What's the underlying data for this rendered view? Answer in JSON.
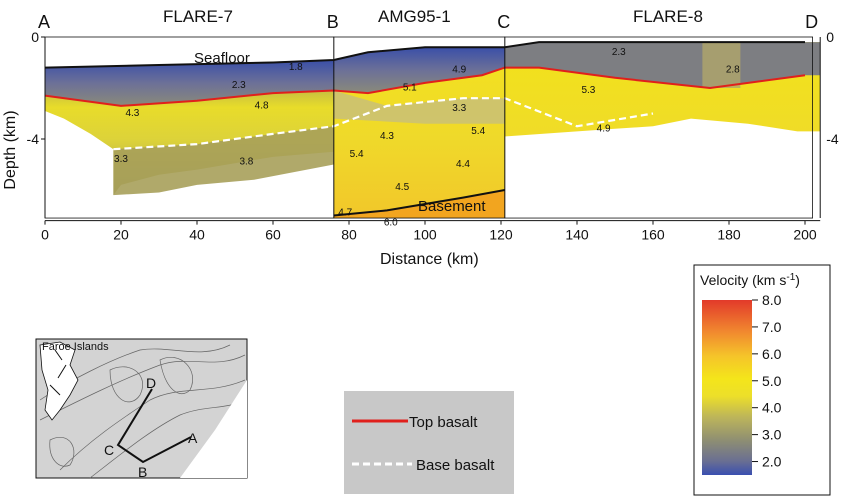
{
  "chart_data": {
    "type": "velocity-profile",
    "sections": [
      {
        "name": "FLARE-7",
        "start": "A",
        "end": "B",
        "x_range": [
          0,
          76
        ]
      },
      {
        "name": "AMG95-1",
        "start": "B",
        "end": "C",
        "x_range": [
          76,
          121
        ]
      },
      {
        "name": "FLARE-8",
        "start": "C",
        "end": "D",
        "x_range": [
          121,
          202
        ]
      }
    ],
    "endpoints": [
      "A",
      "B",
      "C",
      "D"
    ],
    "endpoint_x": [
      0,
      76,
      121,
      202
    ],
    "xlabel": "Distance (km)",
    "ylabel": "Depth (km)",
    "xlim": [
      0,
      202
    ],
    "ylim": [
      -7.5,
      0
    ],
    "x_ticks": [
      0,
      20,
      40,
      60,
      80,
      100,
      120,
      140,
      160,
      180,
      200
    ],
    "x_tick_labels": [
      "0",
      "20",
      "40",
      "60",
      "80",
      "100",
      "120",
      "140",
      "160",
      "180",
      "200"
    ],
    "y_ticks": [
      0,
      -4
    ],
    "y_tick_labels": [
      "0",
      "-4"
    ],
    "seafloor": [
      [
        0,
        -1.2
      ],
      [
        30,
        -1.1
      ],
      [
        60,
        -1.0
      ],
      [
        76,
        -0.9
      ],
      [
        85,
        -0.6
      ],
      [
        100,
        -0.4
      ],
      [
        121,
        -0.4
      ],
      [
        130,
        -0.2
      ],
      [
        160,
        -0.2
      ],
      [
        200,
        -0.2
      ]
    ],
    "top_basalt": [
      [
        0,
        -2.3
      ],
      [
        20,
        -2.7
      ],
      [
        40,
        -2.5
      ],
      [
        60,
        -2.2
      ],
      [
        76,
        -2.1
      ],
      [
        85,
        -2.2
      ],
      [
        100,
        -1.8
      ],
      [
        115,
        -1.5
      ],
      [
        121,
        -1.2
      ],
      [
        130,
        -1.2
      ],
      [
        150,
        -1.6
      ],
      [
        175,
        -2.0
      ],
      [
        200,
        -1.5
      ]
    ],
    "base_basalt": [
      [
        18,
        -4.4
      ],
      [
        40,
        -4.2
      ],
      [
        60,
        -3.8
      ],
      [
        76,
        -3.5
      ],
      [
        90,
        -2.7
      ],
      [
        110,
        -2.4
      ],
      [
        121,
        -2.4
      ],
      [
        140,
        -3.5
      ],
      [
        160,
        -3.0
      ]
    ],
    "basement_top": [
      [
        76,
        -7.0
      ],
      [
        90,
        -6.8
      ],
      [
        110,
        -6.3
      ],
      [
        121,
        -6.0
      ]
    ],
    "velocity_labels": [
      {
        "x": 66,
        "y": -1.3,
        "text": "1.8"
      },
      {
        "x": 51,
        "y": -2.0,
        "text": "2.3"
      },
      {
        "x": 57,
        "y": -2.8,
        "text": "4.8"
      },
      {
        "x": 23,
        "y": -3.1,
        "text": "4.3"
      },
      {
        "x": 20,
        "y": -4.9,
        "text": "3.3"
      },
      {
        "x": 53,
        "y": -5.0,
        "text": "3.8"
      },
      {
        "x": 109,
        "y": -1.4,
        "text": "4.9"
      },
      {
        "x": 96,
        "y": -2.1,
        "text": "5.1"
      },
      {
        "x": 109,
        "y": -2.9,
        "text": "3.3"
      },
      {
        "x": 90,
        "y": -4.0,
        "text": "4.3"
      },
      {
        "x": 114,
        "y": -3.8,
        "text": "5.4"
      },
      {
        "x": 82,
        "y": -4.7,
        "text": "5.4"
      },
      {
        "x": 110,
        "y": -5.1,
        "text": "4.4"
      },
      {
        "x": 94,
        "y": -6.0,
        "text": "4.5"
      },
      {
        "x": 79,
        "y": -7.0,
        "text": "4.7"
      },
      {
        "x": 91,
        "y": -7.4,
        "text": "6.0"
      },
      {
        "x": 151,
        "y": -0.7,
        "text": "2.3"
      },
      {
        "x": 181,
        "y": -1.4,
        "text": "2.8"
      },
      {
        "x": 143,
        "y": -2.2,
        "text": "5.3"
      },
      {
        "x": 147,
        "y": -3.7,
        "text": "4.9"
      }
    ],
    "annotations": [
      "Seafloor",
      "Basement"
    ],
    "colorbar": {
      "title": "Velocity (km s",
      "title_superscript": "-1",
      "title_close": ")",
      "min": 1.5,
      "max": 8.0,
      "ticks": [
        "8.0",
        "7.0",
        "6.0",
        "5.0",
        "4.0",
        "3.0",
        "2.0"
      ],
      "tick_values": [
        8,
        7,
        6,
        5,
        4,
        3,
        2
      ]
    },
    "legend": [
      {
        "label": "Top basalt",
        "color": "#e0201c",
        "style": "solid"
      },
      {
        "label": "Base basalt",
        "color": "#ffffff",
        "style": "dashed"
      }
    ]
  },
  "inset_map": {
    "title": "Faroe Islands",
    "labels": [
      "A",
      "B",
      "C",
      "D"
    ]
  },
  "colors": {
    "seafloor_line": "#111111",
    "top_basalt": "#e0201c",
    "base_basalt": "#ffffff",
    "water_blue": "#3a4fa8",
    "basement": "#f2a51f",
    "legend_bg": "#c8c8c8",
    "map_bg": "#d3d3d3"
  }
}
